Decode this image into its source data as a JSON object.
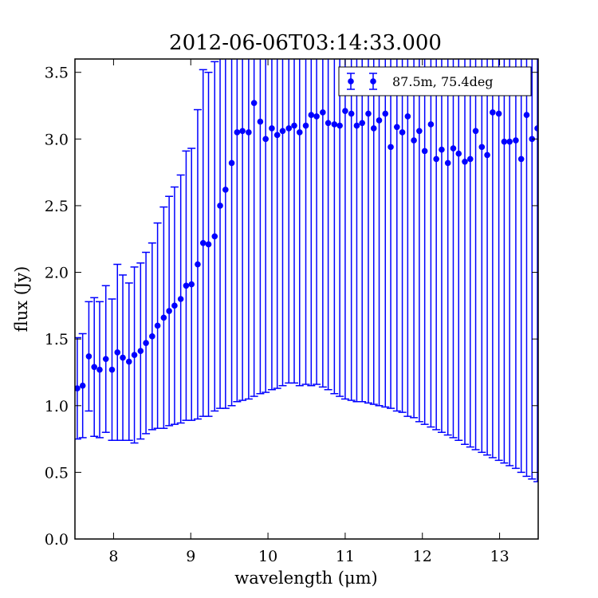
{
  "chart_data": {
    "type": "scatter",
    "title": "2012-06-06T03:14:33.000",
    "xlabel": "wavelength (μm)",
    "ylabel": "flux (Jy)",
    "xlim": [
      7.5,
      13.5
    ],
    "ylim": [
      0.0,
      3.6
    ],
    "xticks": [
      "8",
      "9",
      "10",
      "11",
      "12",
      "13"
    ],
    "yticks": [
      "0.0",
      "0.5",
      "1.0",
      "1.5",
      "2.0",
      "2.5",
      "3.0",
      "3.5"
    ],
    "legend_position": "top-right",
    "grid": false,
    "series": [
      {
        "name": "87.5m, 75.4deg",
        "color": "#0000ff",
        "marker": "circle",
        "error_bars": true,
        "x": [
          7.53,
          7.6,
          7.68,
          7.75,
          7.82,
          7.9,
          7.98,
          8.05,
          8.12,
          8.2,
          8.27,
          8.35,
          8.42,
          8.5,
          8.57,
          8.65,
          8.72,
          8.79,
          8.87,
          8.94,
          9.01,
          9.09,
          9.16,
          9.23,
          9.31,
          9.38,
          9.45,
          9.53,
          9.6,
          9.67,
          9.75,
          9.82,
          9.9,
          9.97,
          10.05,
          10.12,
          10.19,
          10.27,
          10.34,
          10.41,
          10.49,
          10.56,
          10.63,
          10.71,
          10.78,
          10.86,
          10.93,
          11.0,
          11.08,
          11.15,
          11.22,
          11.3,
          11.37,
          11.44,
          11.52,
          11.59,
          11.67,
          11.74,
          11.81,
          11.89,
          11.96,
          12.03,
          12.11,
          12.18,
          12.25,
          12.33,
          12.4,
          12.47,
          12.55,
          12.62,
          12.69,
          12.77,
          12.84,
          12.91,
          12.99,
          13.06,
          13.13,
          13.21,
          13.28,
          13.35,
          13.42,
          13.49
        ],
        "y": [
          1.13,
          1.15,
          1.37,
          1.29,
          1.27,
          1.35,
          1.27,
          1.4,
          1.36,
          1.33,
          1.38,
          1.41,
          1.47,
          1.52,
          1.6,
          1.66,
          1.71,
          1.75,
          1.8,
          1.9,
          1.91,
          2.06,
          2.22,
          2.21,
          2.27,
          2.5,
          2.62,
          2.82,
          3.05,
          3.06,
          3.05,
          3.27,
          3.13,
          3.0,
          3.08,
          3.03,
          3.06,
          3.08,
          3.1,
          3.05,
          3.1,
          3.18,
          3.17,
          3.2,
          3.12,
          3.11,
          3.1,
          3.21,
          3.19,
          3.1,
          3.12,
          3.19,
          3.08,
          3.14,
          3.19,
          2.94,
          3.09,
          3.05,
          3.17,
          2.99,
          3.06,
          2.91,
          3.11,
          2.85,
          2.92,
          2.82,
          2.93,
          2.89,
          2.83,
          2.85,
          3.06,
          2.94,
          2.88,
          3.2,
          3.19,
          2.98,
          2.98,
          2.99,
          2.85,
          3.18,
          3.0,
          3.08
        ],
        "yerr": [
          0.38,
          0.39,
          0.41,
          0.52,
          0.51,
          0.55,
          0.53,
          0.66,
          0.62,
          0.59,
          0.66,
          0.66,
          0.68,
          0.7,
          0.77,
          0.83,
          0.86,
          0.89,
          0.93,
          1.01,
          1.02,
          1.16,
          1.3,
          1.29,
          1.31,
          1.52,
          1.64,
          1.82,
          2.02,
          2.02,
          2.0,
          2.2,
          2.04,
          1.9,
          1.96,
          1.9,
          1.91,
          1.91,
          1.93,
          1.9,
          1.94,
          2.03,
          2.01,
          2.06,
          2.0,
          2.02,
          2.03,
          2.16,
          2.15,
          2.07,
          2.09,
          2.17,
          2.07,
          2.14,
          2.2,
          1.96,
          2.13,
          2.1,
          2.25,
          2.08,
          2.18,
          2.05,
          2.27,
          2.03,
          2.12,
          2.04,
          2.17,
          2.15,
          2.12,
          2.16,
          2.39,
          2.29,
          2.25,
          2.59,
          2.6,
          2.41,
          2.43,
          2.46,
          2.35,
          2.71,
          2.55,
          2.65
        ]
      }
    ]
  }
}
